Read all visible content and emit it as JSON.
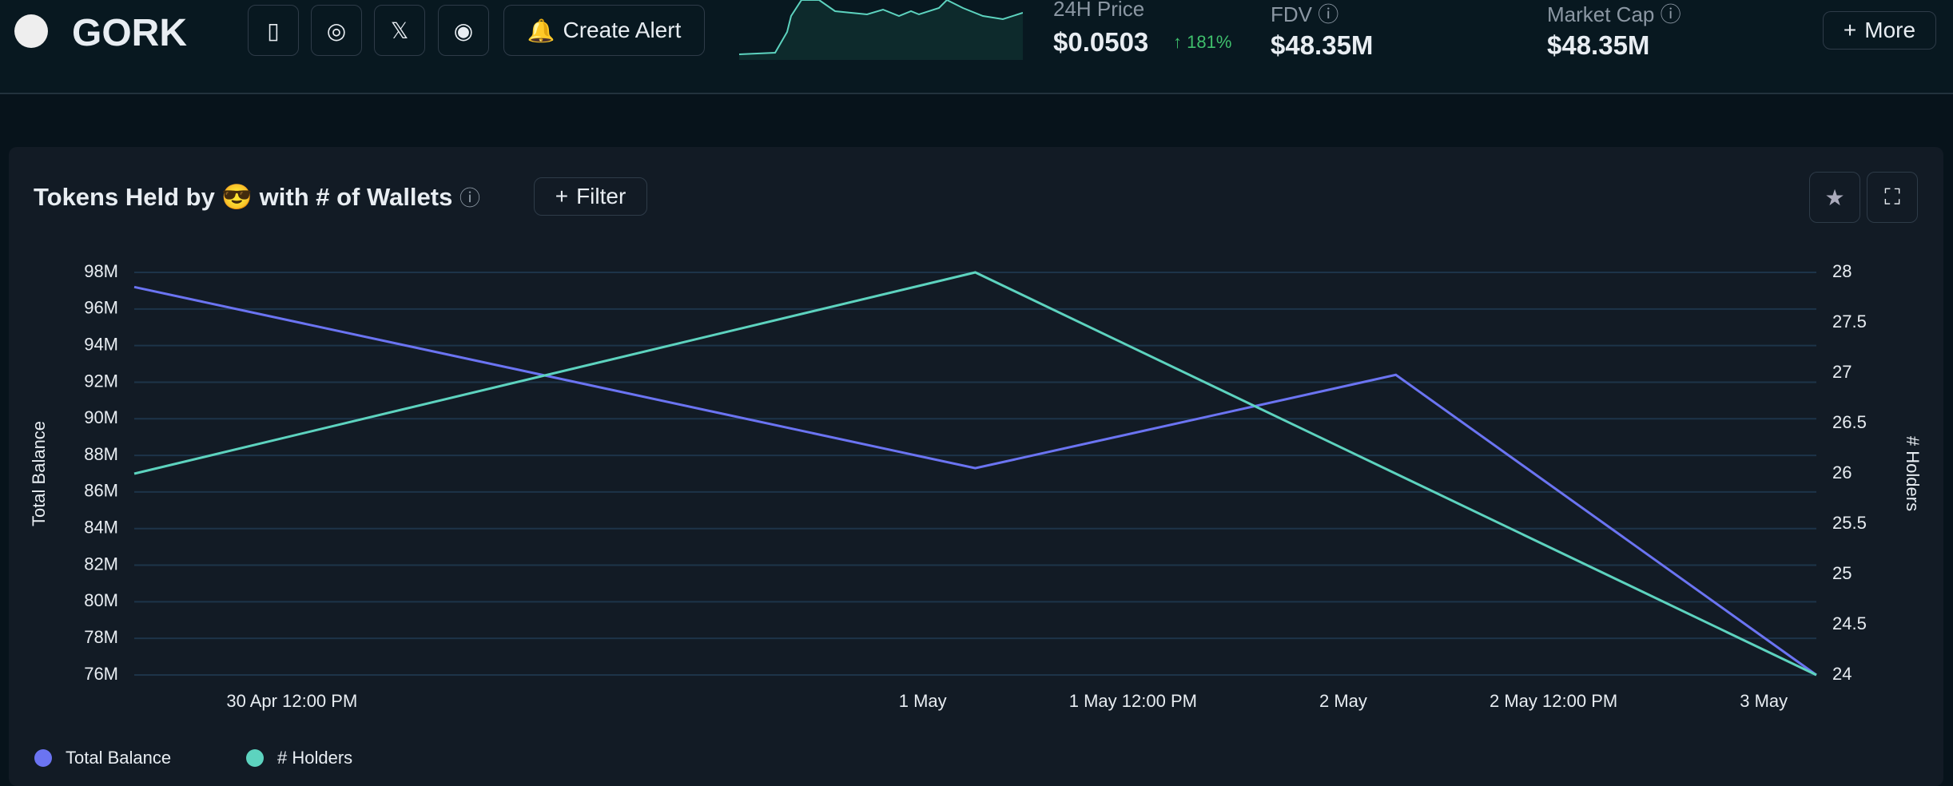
{
  "header": {
    "token": "GORK",
    "create_alert": "Create Alert",
    "price_label": "24H Price",
    "price": "$0.0503",
    "price_change": "181%",
    "fdv_label": "FDV",
    "fdv": "$48.35M",
    "mcap_label": "Market Cap",
    "mcap": "$48.35M",
    "more": "More"
  },
  "panel": {
    "title_start": "Tokens Held by",
    "title_end": "with # of Wallets",
    "filter": "Filter"
  },
  "chart_data": {
    "type": "line",
    "x": [
      "30 Apr 03:00",
      "1 May 03:00",
      "2 May 03:00",
      "3 May 03:00"
    ],
    "xlim": [
      "30 Apr 03:00",
      "3 May 03:00"
    ],
    "xticks": [
      {
        "value": "30 Apr 12:00",
        "label": "30 Apr 12:00 PM"
      },
      {
        "value": "1 May",
        "label": "1 May"
      },
      {
        "value": "1 May 12:00",
        "label": "1 May 12:00 PM"
      },
      {
        "value": "2 May",
        "label": "2 May"
      },
      {
        "value": "2 May 12:00",
        "label": "2 May 12:00 PM"
      },
      {
        "value": "3 May",
        "label": "3 May"
      }
    ],
    "ylabel": "Total Balance",
    "y2label": "# Holders",
    "ylim": [
      76000000,
      98000000
    ],
    "yticks": [
      {
        "value": 76000000,
        "label": "76M"
      },
      {
        "value": 78000000,
        "label": "78M"
      },
      {
        "value": 80000000,
        "label": "80M"
      },
      {
        "value": 82000000,
        "label": "82M"
      },
      {
        "value": 84000000,
        "label": "84M"
      },
      {
        "value": 86000000,
        "label": "86M"
      },
      {
        "value": 88000000,
        "label": "88M"
      },
      {
        "value": 90000000,
        "label": "90M"
      },
      {
        "value": 92000000,
        "label": "92M"
      },
      {
        "value": 94000000,
        "label": "94M"
      },
      {
        "value": 96000000,
        "label": "96M"
      },
      {
        "value": 98000000,
        "label": "98M"
      }
    ],
    "y2lim": [
      24,
      28
    ],
    "y2ticks": [
      24,
      24.5,
      25,
      25.5,
      26,
      26.5,
      27,
      27.5,
      28
    ],
    "grid": true,
    "series": [
      {
        "name": "Total Balance",
        "color": "#6b74f2",
        "values": [
          97200000,
          87300000,
          92400000,
          76000000
        ]
      },
      {
        "name": "# Holders",
        "color": "#5dd3bf",
        "axis": "y2",
        "values": [
          26,
          28,
          26,
          24
        ]
      }
    ]
  }
}
